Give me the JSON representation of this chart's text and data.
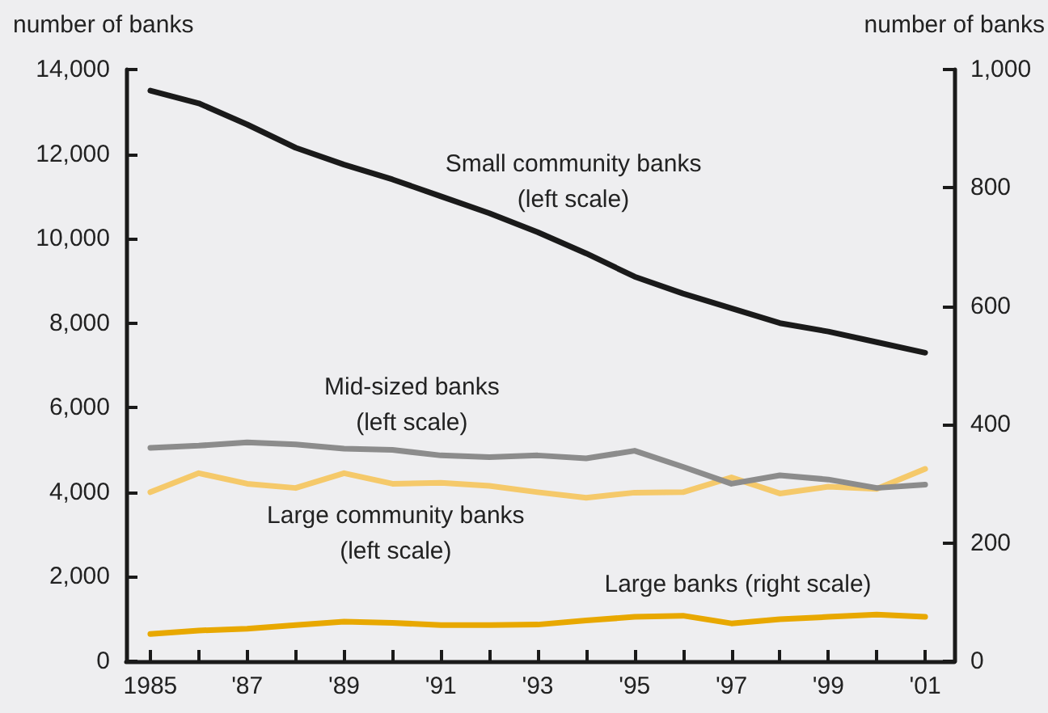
{
  "chart_data": {
    "type": "line",
    "ylabel": "number of banks",
    "y2label": "number of banks",
    "x": [
      1985,
      1986,
      1987,
      1988,
      1989,
      1990,
      1991,
      1992,
      1993,
      1994,
      1995,
      1996,
      1997,
      1998,
      1999,
      2000,
      2001
    ],
    "xlim": [
      1984.5,
      2001.6
    ],
    "xticks": [
      {
        "value": 1985,
        "label": "1985"
      },
      {
        "value": 1986,
        "label": null
      },
      {
        "value": 1987,
        "label": "'87"
      },
      {
        "value": 1988,
        "label": null
      },
      {
        "value": 1989,
        "label": "'89"
      },
      {
        "value": 1990,
        "label": null
      },
      {
        "value": 1991,
        "label": "'91"
      },
      {
        "value": 1992,
        "label": null
      },
      {
        "value": 1993,
        "label": "'93"
      },
      {
        "value": 1994,
        "label": null
      },
      {
        "value": 1995,
        "label": "'95"
      },
      {
        "value": 1996,
        "label": null
      },
      {
        "value": 1997,
        "label": "'97"
      },
      {
        "value": 1998,
        "label": null
      },
      {
        "value": 1999,
        "label": "'99"
      },
      {
        "value": 2000,
        "label": null
      },
      {
        "value": 2001,
        "label": "'01"
      }
    ],
    "ylim": [
      0,
      14000
    ],
    "yticks": [
      {
        "value": 0,
        "label": "0"
      },
      {
        "value": 2000,
        "label": "2,000"
      },
      {
        "value": 4000,
        "label": "4,000"
      },
      {
        "value": 6000,
        "label": "6,000"
      },
      {
        "value": 8000,
        "label": "8,000"
      },
      {
        "value": 10000,
        "label": "10,000"
      },
      {
        "value": 12000,
        "label": "12,000"
      },
      {
        "value": 14000,
        "label": "14,000"
      }
    ],
    "y2lim": [
      0,
      1000
    ],
    "y2ticks": [
      {
        "value": 0,
        "label": "0"
      },
      {
        "value": 200,
        "label": "200"
      },
      {
        "value": 400,
        "label": "400"
      },
      {
        "value": 600,
        "label": "600"
      },
      {
        "value": 800,
        "label": "800"
      },
      {
        "value": 1000,
        "label": "1,000"
      }
    ],
    "grid": false,
    "legend": false,
    "marker": "none",
    "line_style": "solid",
    "series": [
      {
        "name": "Small community banks (left scale)",
        "color": "#1a1a1a",
        "values": [
          13500,
          13200,
          12700,
          12150,
          11750,
          11400,
          11000,
          10600,
          10150,
          9650,
          9100,
          8700,
          8350,
          8000,
          7800,
          7550,
          7300
        ]
      },
      {
        "name": "Mid-sized banks (left scale)",
        "color": "#8c8c8c",
        "values": [
          5050,
          5100,
          5180,
          5130,
          5030,
          5000,
          4870,
          4830,
          4870,
          4800,
          4980,
          4600,
          4200,
          4400,
          4300,
          4100,
          4180
        ]
      },
      {
        "name": "Large community banks (left scale)",
        "color": "#f5c96a",
        "values": [
          4000,
          4450,
          4200,
          4100,
          4450,
          4200,
          4220,
          4150,
          4000,
          3870,
          3990,
          4000,
          4350,
          3970,
          4130,
          4080,
          4550
        ]
      },
      {
        "name": "Large banks (right scale)",
        "color": "#e8a800",
        "axis": "y2",
        "values": [
          46,
          52,
          55,
          61,
          67,
          65,
          61,
          61,
          62,
          69,
          75,
          77,
          64,
          71,
          75,
          79,
          75
        ]
      }
    ]
  }
}
